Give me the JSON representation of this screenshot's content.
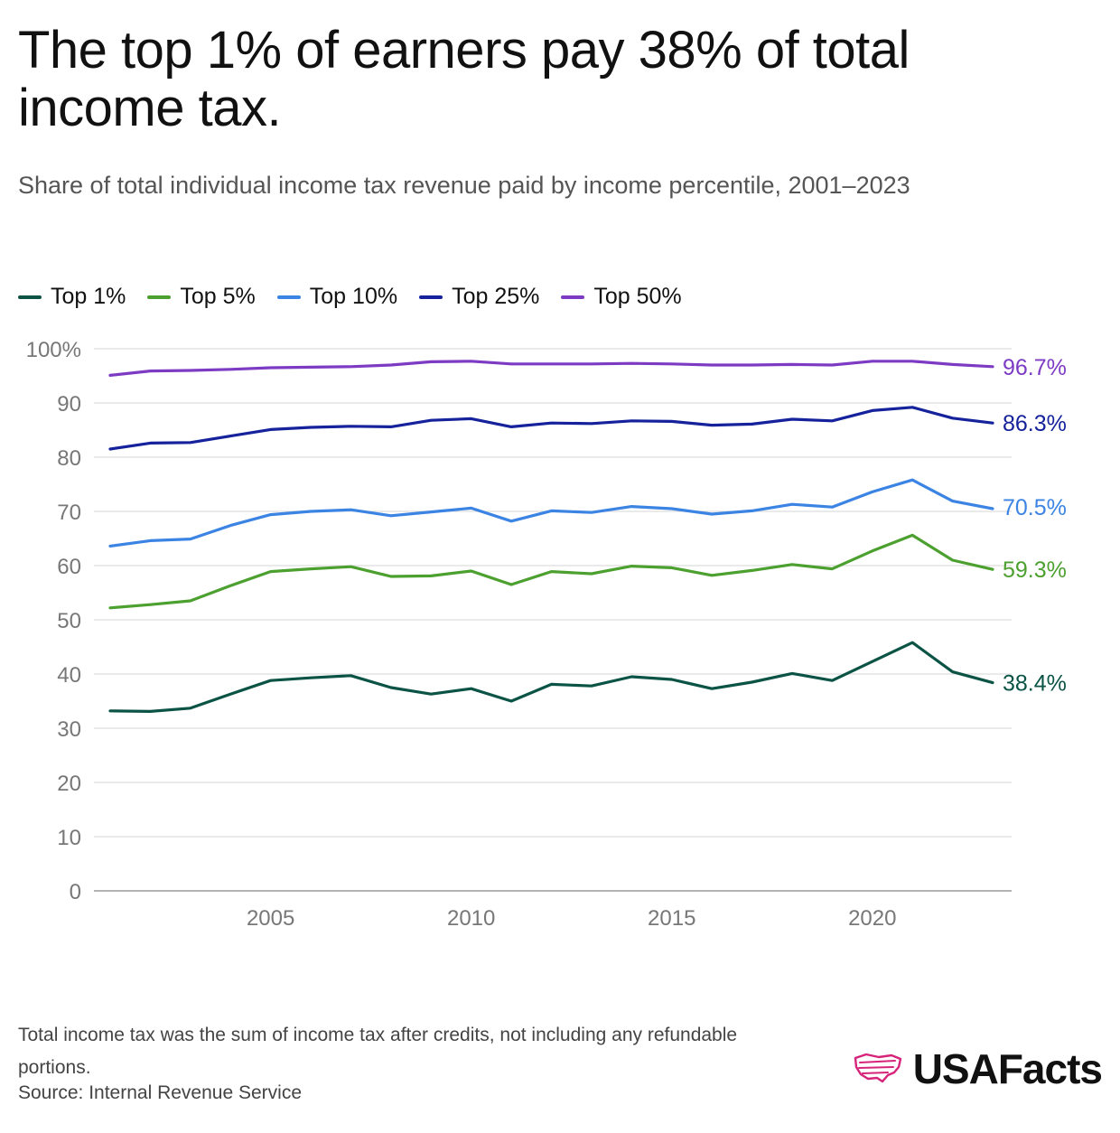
{
  "title": "The top 1% of earners pay 38% of total income tax.",
  "subtitle": "Share of total individual income tax revenue paid by income percentile, 2001–2023",
  "footnote": "Total income tax was the sum of income tax after credits, not including any refundable portions.",
  "source": "Source: Internal Revenue Service",
  "logo": {
    "text": "USAFacts",
    "icon": "usa-map-flag-icon",
    "color": "#d6247a"
  },
  "chart_data": {
    "type": "line",
    "x": [
      2001,
      2002,
      2003,
      2004,
      2005,
      2006,
      2007,
      2008,
      2009,
      2010,
      2011,
      2012,
      2013,
      2014,
      2015,
      2016,
      2017,
      2018,
      2019,
      2020,
      2021,
      2022,
      2023
    ],
    "x_ticks": [
      2005,
      2010,
      2015,
      2020
    ],
    "y_ticks": [
      0,
      10,
      20,
      30,
      40,
      50,
      60,
      70,
      80,
      90,
      100
    ],
    "y_tick_labels": [
      "0",
      "10",
      "20",
      "30",
      "40",
      "50",
      "60",
      "70",
      "80",
      "90",
      "100%"
    ],
    "ylim": [
      0,
      100
    ],
    "xlim": [
      2001,
      2023
    ],
    "grid": "horizontal",
    "legend_position": "top-left",
    "series": [
      {
        "name": "Top 1%",
        "color": "#0b5445",
        "end_label": "38.4%",
        "values": [
          33.2,
          33.1,
          33.7,
          36.3,
          38.8,
          39.3,
          39.7,
          37.5,
          36.3,
          37.3,
          35.0,
          38.1,
          37.8,
          39.5,
          39.0,
          37.3,
          38.5,
          40.1,
          38.8,
          42.3,
          45.8,
          40.4,
          38.4
        ]
      },
      {
        "name": "Top 5%",
        "color": "#4ca02f",
        "end_label": "59.3%",
        "values": [
          52.2,
          52.8,
          53.5,
          56.3,
          58.9,
          59.4,
          59.8,
          58.0,
          58.1,
          59.0,
          56.5,
          58.9,
          58.5,
          59.9,
          59.6,
          58.2,
          59.1,
          60.2,
          59.4,
          62.7,
          65.6,
          61.0,
          59.3
        ]
      },
      {
        "name": "Top 10%",
        "color": "#3b84e3",
        "end_label": "70.5%",
        "values": [
          63.6,
          64.6,
          64.9,
          67.4,
          69.4,
          70.0,
          70.3,
          69.2,
          69.9,
          70.6,
          68.2,
          70.1,
          69.8,
          70.9,
          70.5,
          69.5,
          70.1,
          71.3,
          70.8,
          73.6,
          75.8,
          71.9,
          70.5
        ]
      },
      {
        "name": "Top 25%",
        "color": "#15229b",
        "end_label": "86.3%",
        "values": [
          81.5,
          82.6,
          82.7,
          83.9,
          85.1,
          85.5,
          85.7,
          85.6,
          86.8,
          87.1,
          85.6,
          86.3,
          86.2,
          86.7,
          86.6,
          85.9,
          86.1,
          87.0,
          86.7,
          88.6,
          89.2,
          87.2,
          86.3
        ]
      },
      {
        "name": "Top 50%",
        "color": "#7d3bc4",
        "end_label": "96.7%",
        "values": [
          95.1,
          95.9,
          96.0,
          96.2,
          96.5,
          96.6,
          96.7,
          97.0,
          97.6,
          97.7,
          97.2,
          97.2,
          97.2,
          97.3,
          97.2,
          97.0,
          97.0,
          97.1,
          97.0,
          97.7,
          97.7,
          97.1,
          96.7
        ]
      }
    ]
  }
}
